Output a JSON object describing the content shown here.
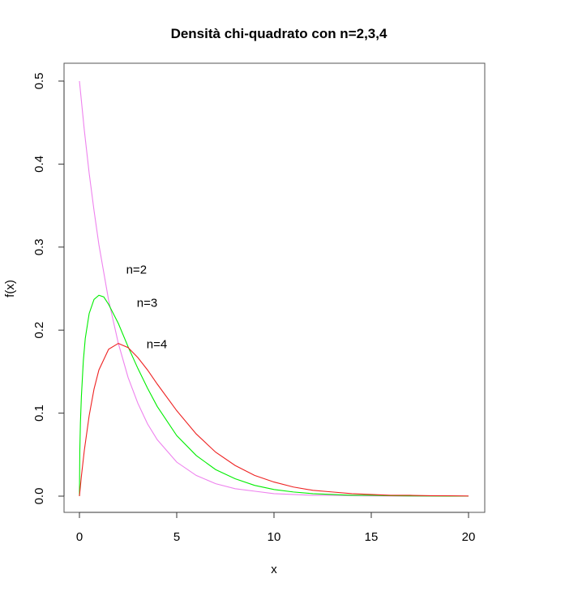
{
  "chart_data": {
    "type": "line",
    "title": "Densità chi-quadrato con n=2,3,4",
    "xlabel": "x",
    "ylabel": "f(x)",
    "xlim": [
      0,
      20
    ],
    "ylim": [
      0,
      0.5
    ],
    "xticks": [
      "0",
      "5",
      "10",
      "15",
      "20"
    ],
    "yticks": [
      "0.0",
      "0.1",
      "0.2",
      "0.3",
      "0.4",
      "0.5"
    ],
    "grid": false,
    "legend": "none",
    "series": [
      {
        "color": "#ee82ee",
        "x": [
          0,
          0.25,
          0.5,
          0.75,
          1,
          1.5,
          2,
          2.5,
          3,
          3.5,
          4,
          5,
          6,
          7,
          8,
          9,
          10,
          11,
          12,
          13,
          14,
          15,
          16,
          17,
          18,
          19,
          20
        ],
        "y": [
          0.5,
          0.441,
          0.389,
          0.344,
          0.303,
          0.236,
          0.184,
          0.143,
          0.112,
          0.087,
          0.068,
          0.041,
          0.025,
          0.015,
          0.009,
          0.006,
          0.003,
          0.002,
          0.001,
          0.001,
          0.0005,
          0.0003,
          0.0002,
          0.0001,
          0.0001,
          0.0,
          0.0
        ]
      },
      {
        "color": "#00ee00",
        "x": [
          0,
          0.02,
          0.05,
          0.1,
          0.2,
          0.3,
          0.5,
          0.75,
          1,
          1.25,
          1.5,
          2,
          2.5,
          3,
          3.5,
          4,
          5,
          6,
          7,
          8,
          9,
          10,
          11,
          12,
          13,
          14,
          15,
          16,
          17,
          18,
          19,
          20
        ],
        "y": [
          0,
          0.056,
          0.088,
          0.12,
          0.163,
          0.19,
          0.22,
          0.237,
          0.242,
          0.24,
          0.231,
          0.208,
          0.18,
          0.154,
          0.13,
          0.108,
          0.073,
          0.049,
          0.032,
          0.021,
          0.013,
          0.008,
          0.005,
          0.003,
          0.002,
          0.001,
          0.001,
          0.0005,
          0.0003,
          0.0002,
          0.0001,
          0.0
        ]
      },
      {
        "color": "#ee2222",
        "x": [
          0,
          0.1,
          0.25,
          0.5,
          0.75,
          1,
          1.5,
          2,
          2.5,
          3,
          3.5,
          4,
          5,
          6,
          7,
          8,
          9,
          10,
          11,
          12,
          13,
          14,
          15,
          16,
          17,
          18,
          19,
          20
        ],
        "y": [
          0,
          0.024,
          0.055,
          0.097,
          0.129,
          0.152,
          0.177,
          0.184,
          0.179,
          0.167,
          0.152,
          0.135,
          0.103,
          0.075,
          0.053,
          0.037,
          0.025,
          0.017,
          0.011,
          0.007,
          0.005,
          0.003,
          0.002,
          0.001,
          0.001,
          0.0006,
          0.0004,
          0.0002
        ]
      }
    ],
    "annotations": [
      {
        "text": "n=2",
        "x": 2.4,
        "y": 0.268
      },
      {
        "text": "n=3",
        "x": 2.95,
        "y": 0.228
      },
      {
        "text": "n=4",
        "x": 3.45,
        "y": 0.178
      }
    ]
  }
}
